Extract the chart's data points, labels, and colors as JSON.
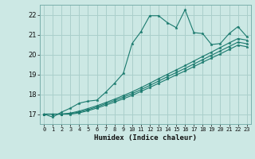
{
  "xlabel": "Humidex (Indice chaleur)",
  "background_color": "#cce8e4",
  "grid_color": "#aacfcb",
  "line_color": "#1a7a6e",
  "xlim": [
    -0.5,
    23.5
  ],
  "ylim": [
    16.5,
    22.5
  ],
  "yticks": [
    17,
    18,
    19,
    20,
    21,
    22
  ],
  "xticks": [
    0,
    1,
    2,
    3,
    4,
    5,
    6,
    7,
    8,
    9,
    10,
    11,
    12,
    13,
    14,
    15,
    16,
    17,
    18,
    19,
    20,
    21,
    22,
    23
  ],
  "series1_x": [
    0,
    1,
    2,
    3,
    4,
    5,
    6,
    7,
    8,
    9,
    10,
    11,
    12,
    13,
    14,
    15,
    16,
    17,
    18,
    19,
    20,
    21,
    22,
    23
  ],
  "series1_y": [
    17.0,
    16.85,
    17.1,
    17.3,
    17.55,
    17.65,
    17.7,
    18.1,
    18.55,
    19.05,
    20.55,
    21.15,
    21.95,
    21.95,
    21.6,
    21.35,
    22.25,
    21.1,
    21.05,
    20.5,
    20.55,
    21.05,
    21.4,
    20.9
  ],
  "series2_x": [
    0,
    1,
    2,
    3,
    4,
    5,
    6,
    7,
    8,
    9,
    10,
    11,
    12,
    13,
    14,
    15,
    16,
    17,
    18,
    19,
    20,
    21,
    22,
    23
  ],
  "series2_y": [
    17.0,
    17.0,
    17.0,
    17.05,
    17.15,
    17.28,
    17.42,
    17.58,
    17.75,
    17.93,
    18.12,
    18.33,
    18.55,
    18.78,
    19.0,
    19.22,
    19.44,
    19.67,
    19.9,
    20.12,
    20.35,
    20.58,
    20.8,
    20.72
  ],
  "series3_x": [
    0,
    1,
    2,
    3,
    4,
    5,
    6,
    7,
    8,
    9,
    10,
    11,
    12,
    13,
    14,
    15,
    16,
    17,
    18,
    19,
    20,
    21,
    22,
    23
  ],
  "series3_y": [
    17.0,
    17.0,
    17.0,
    17.02,
    17.1,
    17.22,
    17.36,
    17.52,
    17.68,
    17.85,
    18.03,
    18.23,
    18.44,
    18.66,
    18.88,
    19.09,
    19.3,
    19.52,
    19.74,
    19.96,
    20.18,
    20.4,
    20.62,
    20.54
  ],
  "series4_x": [
    0,
    1,
    2,
    3,
    4,
    5,
    6,
    7,
    8,
    9,
    10,
    11,
    12,
    13,
    14,
    15,
    16,
    17,
    18,
    19,
    20,
    21,
    22,
    23
  ],
  "series4_y": [
    17.0,
    17.0,
    17.0,
    17.0,
    17.06,
    17.17,
    17.3,
    17.45,
    17.6,
    17.77,
    17.94,
    18.14,
    18.34,
    18.55,
    18.76,
    18.97,
    19.17,
    19.39,
    19.61,
    19.82,
    20.03,
    20.25,
    20.47,
    20.39
  ]
}
